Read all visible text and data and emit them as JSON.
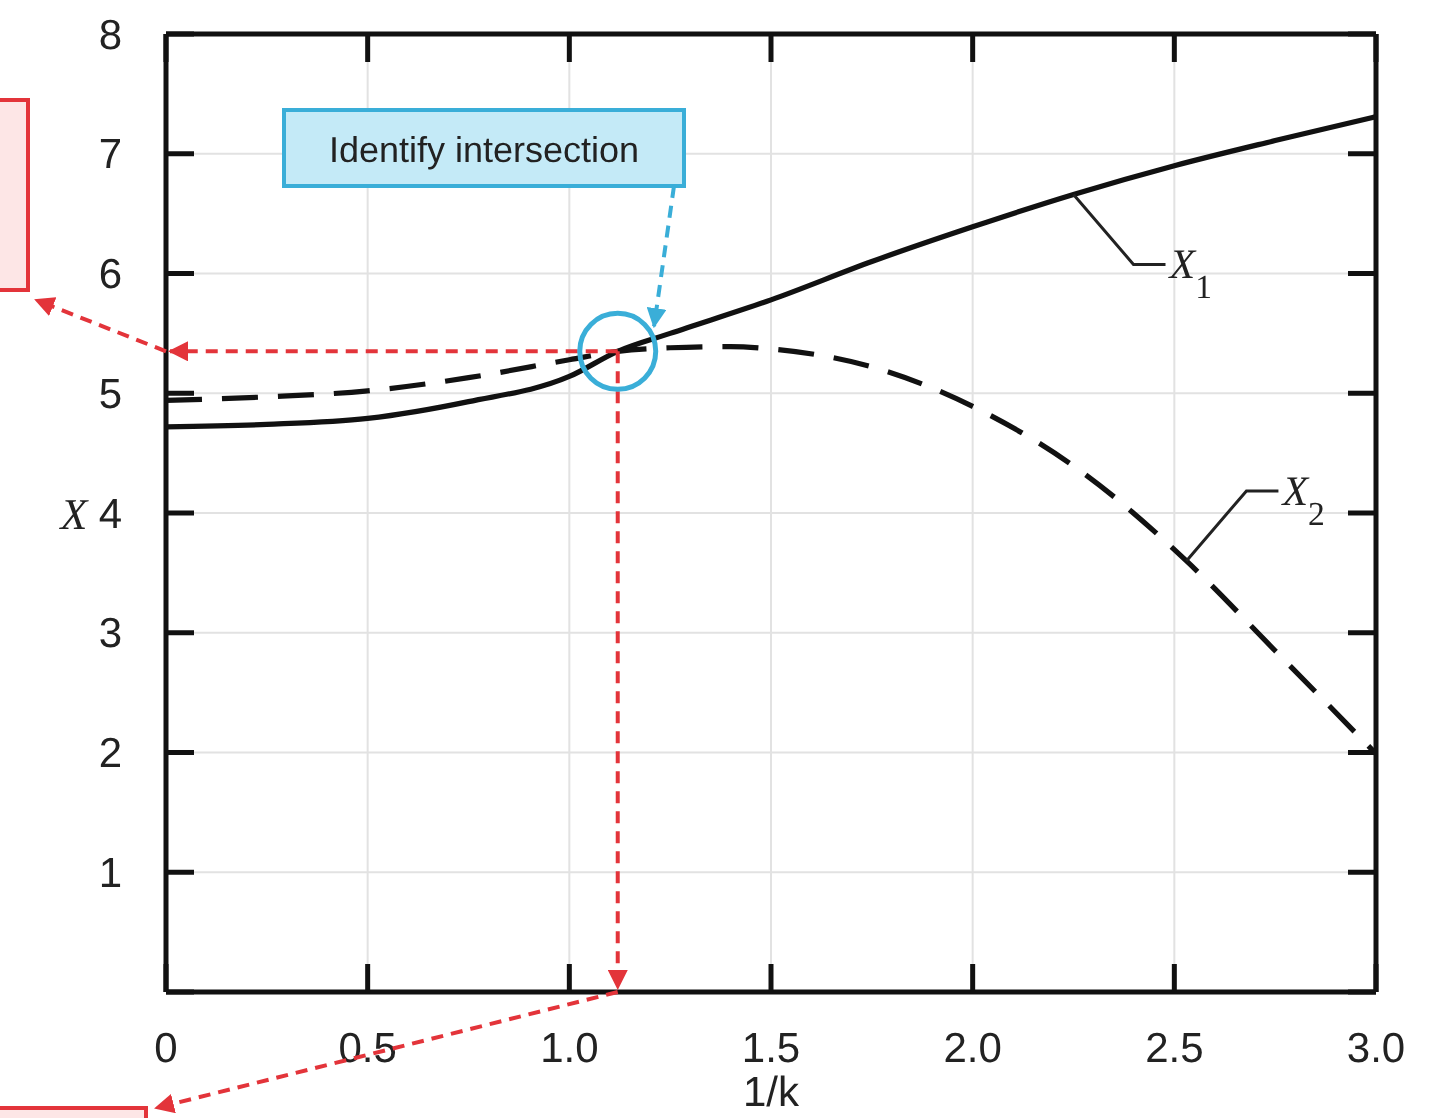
{
  "chart_data": {
    "type": "line",
    "xlabel": "1/k",
    "ylabel": "X",
    "xlim": [
      0,
      3
    ],
    "ylim": [
      0,
      8
    ],
    "xticks": [
      0,
      0.5,
      {
        "value": 1,
        "label": "1.0"
      },
      1.5,
      {
        "value": 2,
        "label": "2.0"
      },
      2.5,
      {
        "value": 3,
        "label": "3.0"
      }
    ],
    "yticks": [
      {
        "value": 0,
        "label": null
      },
      1,
      2,
      3,
      4,
      5,
      6,
      7,
      8
    ],
    "grid": true,
    "annotations": [
      {
        "text": "Identify intersection",
        "x": 1.21,
        "y": 5.56
      }
    ],
    "series": [
      {
        "name": "X$_{1}$",
        "color": "#111111",
        "line_style": "solid",
        "x": [
          0,
          0.25,
          0.5,
          0.75,
          1.0,
          1.12,
          1.25,
          1.5,
          1.75,
          2.0,
          2.25,
          2.5,
          2.75,
          3.0
        ],
        "values": [
          4.72,
          4.74,
          4.79,
          4.93,
          5.14,
          5.35,
          5.5,
          5.78,
          6.1,
          6.39,
          6.66,
          6.9,
          7.11,
          7.31
        ]
      },
      {
        "name": "X$_{2}$",
        "color": "#111111",
        "line_style": "dashed",
        "x": [
          0,
          0.25,
          0.5,
          0.75,
          1.0,
          1.12,
          1.25,
          1.4,
          1.5,
          1.75,
          2.0,
          2.28,
          2.53,
          2.75,
          3.0
        ],
        "values": [
          4.94,
          4.97,
          5.02,
          5.13,
          5.28,
          5.35,
          5.38,
          5.39,
          5.37,
          5.22,
          4.89,
          4.32,
          3.6,
          2.85,
          1.99
        ]
      }
    ]
  }
}
